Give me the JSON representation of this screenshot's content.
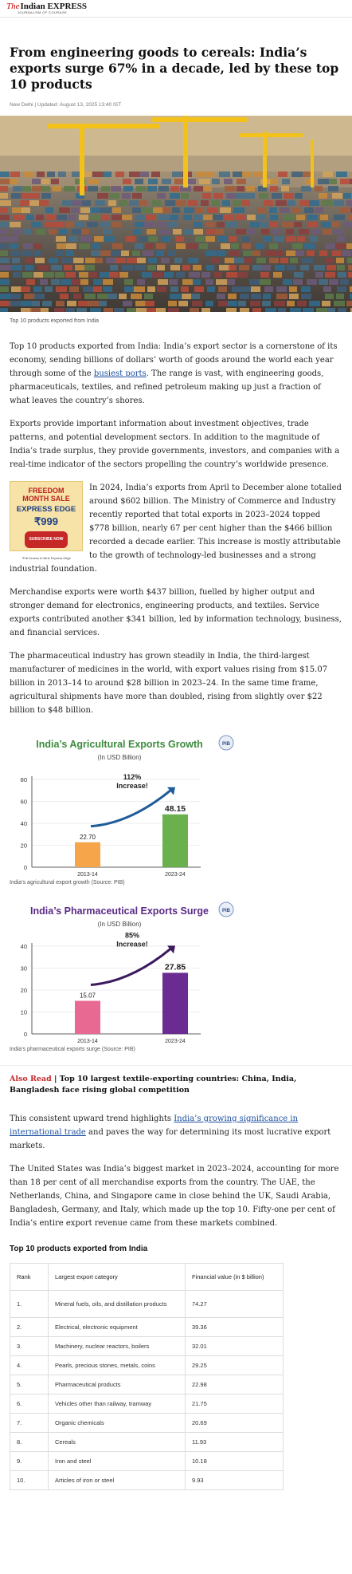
{
  "brand": {
    "the": "The",
    "name": "Indian EXPRESS",
    "tagline": "JOURNALISM OF COURAGE"
  },
  "article": {
    "headline": "From engineering goods to cereals: India’s exports surge 67% in a decade, led by these top 10 products",
    "meta": "New Delhi | Updated: August 13, 2025 13:40 IST",
    "hero_caption": "Top 10 products exported from India",
    "p1_before": "Top 10 products exported from India: India’s export sector is a cornerstone of its economy, sending billions of dollars’ worth of goods around the world each year through some of the ",
    "p1_link": "busiest ports",
    "p1_after": ". The range is vast, with engineering goods, pharmaceuticals, textiles, and refined petroleum making up just a fraction of what leaves the country’s shores.",
    "p2": "Exports provide important information about investment objectives, trade patterns, and potential development sectors. In addition to the magnitude of India’s trade surplus, they provide governments, investors, and companies with a real-time indicator of the sectors propelling the country’s worldwide presence.",
    "p3": "In 2024, India’s exports from April to December alone totalled around $602 billion. The Ministry of Commerce and Industry recently reported that total exports in 2023–2024 topped $778 billion, nearly 67 per cent higher than the $466 billion recorded a decade earlier. This increase is mostly attributable to the growth of technology-led businesses and a strong industrial foundation.",
    "p4": "Merchandise exports were worth $437 billion, fuelled by higher output and stronger demand for electronics, engineering products, and textiles. Service exports contributed another $341 billion, led by information technology, business, and financial services.",
    "p5": "The pharmaceutical industry has grown steadily in India, the third-largest manufacturer of medicines in the world, with export values rising from $15.07 billion in 2013–14 to around $28 billion in 2023–24. In the same time frame, agricultural shipments have more than doubled, rising from slightly over $22 billion to $48 billion.",
    "chart1_caption": "India’s agricultural export growth (Source: PIB)",
    "chart2_caption": "India’s pharmaceutical exports surge (Source: PIB)",
    "also_tag": "Also Read",
    "also_text": "Top 10 largest textile-exporting countries: China, India, Bangladesh face rising global competition",
    "p6_before": "This consistent upward trend highlights ",
    "p6_link": "India’s growing significance in international trade",
    "p6_after": " and paves the way for determining its most lucrative export markets.",
    "p7": "The United States was India’s biggest market in 2023–2024, accounting for more than 18 per cent of all merchandise exports from the country. The UAE, the Netherlands, China, and Singapore came in close behind the UK, Saudi Arabia, Bangladesh, Germany, and Italy, which made up the top 10. Fifty-one per cent of India’s entire export revenue came from these markets combined.",
    "table_title": "Top 10 products exported from India"
  },
  "ad": {
    "line1": "FREEDOM MONTH SALE",
    "line2": "EXPRESS EDGE",
    "price": "₹999",
    "cta": "SUBSCRIBE NOW",
    "fine": "*Full Access to Nine Express Edge"
  },
  "table": {
    "headers": [
      "Rank",
      "Largest export category",
      "Financial value (in $ billion)"
    ],
    "rows": [
      [
        "1.",
        "Mineral fuels, oils, and distillation products",
        "74.27"
      ],
      [
        "2.",
        "Electrical, electronic equipment",
        "39.36"
      ],
      [
        "3.",
        "Machinery, nuclear reactors, boilers",
        "32.01"
      ],
      [
        "4.",
        "Pearls, precious stones, metals, coins",
        "29.25"
      ],
      [
        "5.",
        "Pharmaceutical products",
        "22.98"
      ],
      [
        "6.",
        "Vehicles other than railway, tramway",
        "21.75"
      ],
      [
        "7.",
        "Organic chemicals",
        "20.69"
      ],
      [
        "8.",
        "Cereals",
        "11.93"
      ],
      [
        "9.",
        "Iron and steel",
        "10.18"
      ],
      [
        "10.",
        "Articles of iron or steel",
        "9.93"
      ]
    ]
  },
  "chart_data": [
    {
      "type": "bar",
      "title": "India’s Agricultural Exports Growth",
      "subtitle": "(In USD Billion)",
      "categories": [
        "2013-14",
        "2023-24"
      ],
      "values": [
        22.7,
        48.15
      ],
      "value_labels": [
        "22.70",
        "48.15"
      ],
      "colors": [
        "#f7a54a",
        "#6ab04c"
      ],
      "title_color": "#3d8b3d",
      "annotation": "112% Increase!",
      "ylim": [
        0,
        80
      ],
      "yticks": [
        0,
        20,
        40,
        60,
        80
      ],
      "grid": true,
      "logo": "pib-logo-icon"
    },
    {
      "type": "bar",
      "title": "India’s Pharmaceutical Exports Surge",
      "subtitle": "(In USD Billion)",
      "categories": [
        "2013-14",
        "2023-24"
      ],
      "values": [
        15.07,
        27.85
      ],
      "value_labels": [
        "15.07",
        "27.85"
      ],
      "colors": [
        "#e86a92",
        "#6a2c91"
      ],
      "title_color": "#5b2a86",
      "annotation": "85% Increase!",
      "ylim": [
        0,
        40
      ],
      "yticks": [
        0,
        10,
        20,
        30,
        40
      ],
      "grid": true,
      "logo": "pib-logo-icon"
    }
  ]
}
